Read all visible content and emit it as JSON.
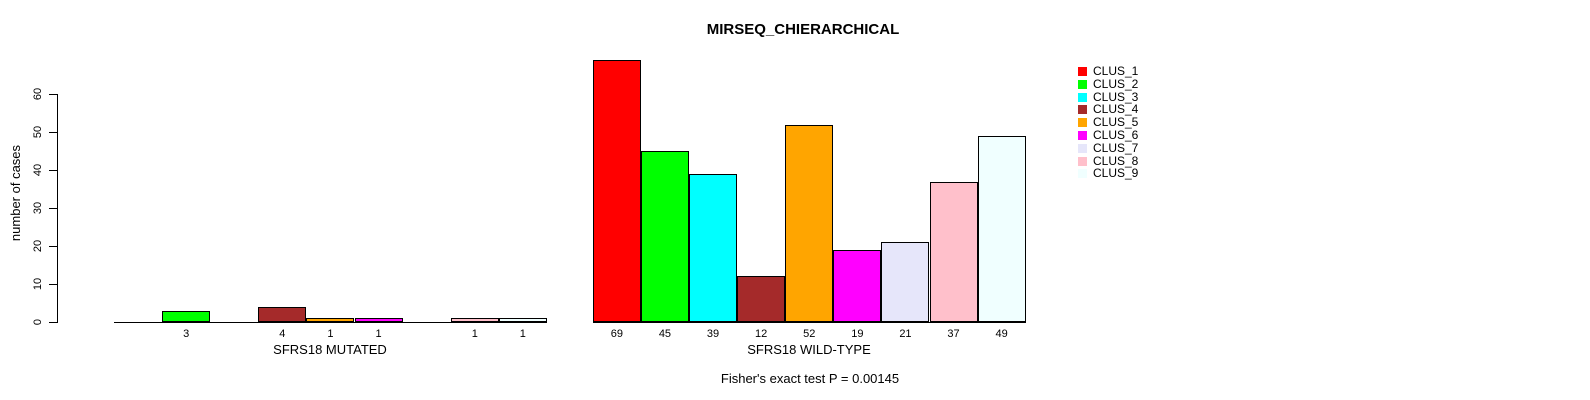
{
  "title": "MIRSEQ_CHIERARCHICAL",
  "chart_data": {
    "type": "bar",
    "title": "MIRSEQ_CHIERARCHICAL",
    "ylabel": "number of cases",
    "xlabel": "",
    "ylim": [
      0,
      60
    ],
    "yticks": [
      0,
      10,
      20,
      30,
      40,
      50,
      60
    ],
    "grid": false,
    "legend_position": "top-right",
    "bar_border_color": "#000000",
    "annotation": "Fisher's exact test P = 0.00145",
    "groups": [
      {
        "label": "SFRS18 MUTATED",
        "key": "mutated"
      },
      {
        "label": "SFRS18 WILD-TYPE",
        "key": "wild_type"
      }
    ],
    "clusters": [
      {
        "name": "CLUS_1",
        "color": "#FF0000",
        "mutated": 0,
        "wild_type": 69
      },
      {
        "name": "CLUS_2",
        "color": "#00FF00",
        "mutated": 3,
        "wild_type": 45
      },
      {
        "name": "CLUS_3",
        "color": "#00FFFF",
        "mutated": 0,
        "wild_type": 39
      },
      {
        "name": "CLUS_4",
        "color": "#A52A2A",
        "mutated": 4,
        "wild_type": 12
      },
      {
        "name": "CLUS_5",
        "color": "#FFA500",
        "mutated": 1,
        "wild_type": 52
      },
      {
        "name": "CLUS_6",
        "color": "#FF00FF",
        "mutated": 1,
        "wild_type": 19
      },
      {
        "name": "CLUS_7",
        "color": "#E6E6FA",
        "mutated": 0,
        "wild_type": 21
      },
      {
        "name": "CLUS_8",
        "color": "#FFC0CB",
        "mutated": 1,
        "wild_type": 37
      },
      {
        "name": "CLUS_9",
        "color": "#F0FFFF",
        "mutated": 1,
        "wild_type": 49
      }
    ]
  }
}
